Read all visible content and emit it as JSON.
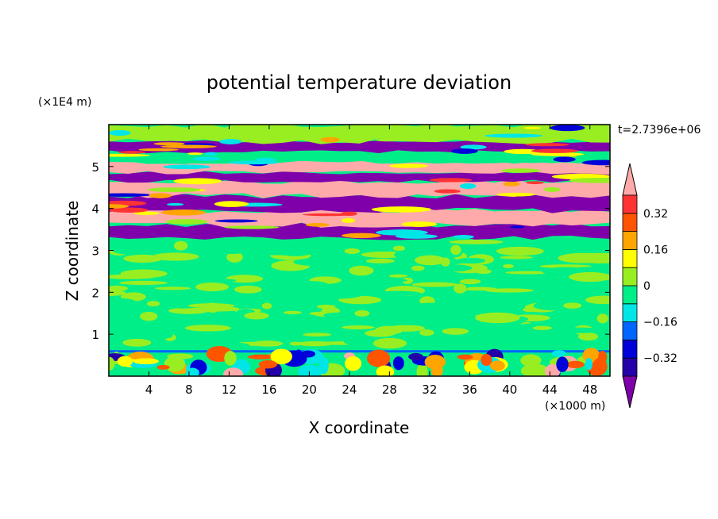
{
  "chart_data": {
    "type": "heatmap",
    "title": "potential temperature deviation",
    "xlabel": "X coordinate",
    "ylabel": "Z coordinate",
    "x_unit": "(×1000 m)",
    "y_unit": "(×1E4 m)",
    "time_label": "t=2.7396e+06",
    "xlim": [
      0,
      50
    ],
    "ylim": [
      0,
      6
    ],
    "x_ticks": [
      "4",
      "8",
      "12",
      "16",
      "20",
      "24",
      "28",
      "32",
      "36",
      "40",
      "44",
      "48"
    ],
    "y_ticks": [
      "1",
      "2",
      "3",
      "4",
      "5"
    ],
    "colorbar": {
      "levels": [
        -0.4,
        -0.32,
        -0.24,
        -0.16,
        -0.08,
        0,
        0.08,
        0.16,
        0.24,
        0.32,
        0.4
      ],
      "tick_labels": [
        "0.32",
        "0.16",
        "0",
        "−0.16",
        "−0.32"
      ],
      "colors": [
        "#7f00aa",
        "#2400a8",
        "#0000d8",
        "#0066ff",
        "#00e6e6",
        "#00ee88",
        "#99ee22",
        "#ffff00",
        "#ffa500",
        "#ff5500",
        "#ff3333",
        "#ffaaaa"
      ],
      "extend": "both"
    },
    "layers": [
      {
        "z": [
          0.0,
          0.6
        ],
        "dominant": "#00ee88",
        "note": "boundary layer with mixed warm/cool cells"
      },
      {
        "z": [
          0.6,
          3.3
        ],
        "dominant": "#00ee88",
        "note": "mixed layer, near-zero deviation"
      },
      {
        "z": [
          3.3,
          3.6
        ],
        "dominant": "#7f00aa"
      },
      {
        "z": [
          3.6,
          3.95
        ],
        "dominant": "#ffaaaa"
      },
      {
        "z": [
          3.95,
          4.3
        ],
        "dominant": "#7f00aa"
      },
      {
        "z": [
          4.3,
          4.65
        ],
        "dominant": "#ffaaaa"
      },
      {
        "z": [
          4.65,
          4.85
        ],
        "dominant": "#7f00aa"
      },
      {
        "z": [
          4.85,
          5.1
        ],
        "dominant": "#ffaaaa"
      },
      {
        "z": [
          5.1,
          5.35
        ],
        "dominant": "#00ee88"
      },
      {
        "z": [
          5.35,
          5.6
        ],
        "dominant": "#7f00aa"
      },
      {
        "z": [
          5.6,
          6.0
        ],
        "dominant": "#99ee22"
      }
    ]
  }
}
